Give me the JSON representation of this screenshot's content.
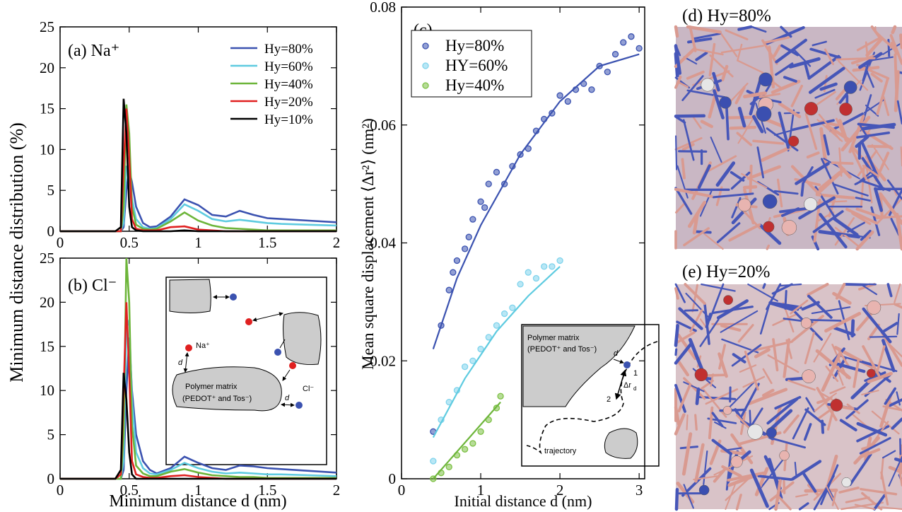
{
  "chart_data": [
    {
      "type": "line",
      "title": "(a) Na⁺",
      "ylabel": "Minimum distance distribution (%)",
      "x": [
        0,
        0.4,
        0.44,
        0.46,
        0.48,
        0.5,
        0.52,
        0.55,
        0.6,
        0.65,
        0.7,
        0.8,
        0.9,
        1.0,
        1.1,
        1.2,
        1.3,
        1.4,
        1.5,
        1.6,
        1.8,
        2.0
      ],
      "series": [
        {
          "name": "Hy=80%",
          "color": "#3b52b0",
          "values": [
            0,
            0,
            0,
            0.5,
            5,
            7.5,
            6,
            3,
            1,
            0.5,
            0.6,
            1.8,
            3.9,
            3.2,
            2,
            1.8,
            2.5,
            2,
            1.6,
            1.5,
            1.3,
            1.1
          ]
        },
        {
          "name": "Hy=60%",
          "color": "#5ecbe0",
          "values": [
            0,
            0,
            0,
            1,
            8,
            7,
            4,
            1.5,
            0.5,
            0.3,
            0.4,
            1.5,
            3.3,
            2.5,
            1.5,
            1.2,
            1.4,
            1.2,
            1,
            0.9,
            0.8,
            0.7
          ]
        },
        {
          "name": "Hy=40%",
          "color": "#6db53a",
          "values": [
            0,
            0,
            0,
            3,
            15.5,
            12,
            3,
            0.8,
            0.3,
            0.2,
            0.3,
            1.2,
            2.3,
            1.3,
            0.7,
            0.4,
            0.3,
            0.2,
            0.1,
            0.1,
            0.1,
            0.1
          ]
        },
        {
          "name": "Hy=20%",
          "color": "#e02020",
          "values": [
            0,
            0,
            0,
            8,
            15,
            9,
            1.5,
            0.3,
            0.1,
            0.1,
            0.1,
            0.5,
            0.6,
            0.2,
            0.1,
            0,
            0,
            0,
            0,
            0,
            0,
            0
          ]
        },
        {
          "name": "Hy=10%",
          "color": "#000000",
          "values": [
            0,
            0,
            0.5,
            16.2,
            12,
            3,
            0.5,
            0.1,
            0,
            0,
            0,
            0,
            0.1,
            0,
            0,
            0,
            0,
            0,
            0,
            0,
            0,
            0
          ]
        }
      ],
      "xlim": [
        0,
        2
      ],
      "ylim": [
        0,
        25
      ],
      "xticks": [
        0,
        0.5,
        1,
        1.5,
        2
      ],
      "yticks": [
        0,
        5,
        10,
        15,
        20,
        25
      ],
      "legend": "upper right"
    },
    {
      "type": "line",
      "title": "(b) Cl⁻",
      "xlabel": "Minimum distance d (nm)",
      "x": [
        0,
        0.4,
        0.44,
        0.46,
        0.48,
        0.5,
        0.52,
        0.55,
        0.6,
        0.65,
        0.7,
        0.8,
        0.9,
        1.0,
        1.1,
        1.2,
        1.3,
        1.4,
        1.5,
        1.6,
        1.8,
        2.0
      ],
      "series": [
        {
          "color": "#3b52b0",
          "values": [
            0,
            0,
            0,
            1,
            10,
            16,
            10,
            5,
            2,
            1,
            0.6,
            1.2,
            2.5,
            1.8,
            1.2,
            1,
            1.5,
            1.4,
            1.2,
            1.1,
            0.9,
            0.7
          ]
        },
        {
          "color": "#5ecbe0",
          "values": [
            0,
            0,
            0,
            2,
            17,
            18,
            9,
            3,
            1.2,
            0.6,
            0.5,
            1.0,
            1.8,
            1.2,
            0.8,
            0.6,
            0.7,
            0.6,
            0.5,
            0.5,
            0.4,
            0.3
          ]
        },
        {
          "color": "#6db53a",
          "values": [
            0,
            0,
            0,
            5,
            25,
            20,
            6,
            1.5,
            0.6,
            0.3,
            0.3,
            0.8,
            1.1,
            0.7,
            0.4,
            0.3,
            0.2,
            0.2,
            0.1,
            0.1,
            0.1,
            0.1
          ]
        },
        {
          "color": "#e02020",
          "values": [
            0,
            0,
            0.5,
            10,
            20,
            12,
            2,
            0.5,
            0.2,
            0.1,
            0.1,
            0.3,
            0.4,
            0.2,
            0.1,
            0,
            0,
            0,
            0,
            0,
            0,
            0
          ]
        },
        {
          "color": "#000000",
          "values": [
            0,
            0,
            1,
            12,
            9,
            3,
            0.5,
            0,
            0,
            0,
            0,
            0,
            0,
            0,
            0,
            0,
            0,
            0,
            0,
            0,
            0,
            0
          ]
        }
      ],
      "xlim": [
        0,
        2
      ],
      "ylim": [
        0,
        25
      ],
      "xticks": [
        0,
        0.5,
        1,
        1.5,
        2
      ],
      "yticks": [
        0,
        5,
        10,
        15,
        20,
        25
      ],
      "annotations": [
        "Na⁺",
        "d",
        "Polymer matrix",
        "(PEDOT⁺ and Tos⁻)",
        "d",
        "Cl⁻"
      ]
    },
    {
      "type": "scatter",
      "title": "(c)",
      "xlabel": "Initial distance d (nm)",
      "ylabel": "Mean square displacement ⟨Δr²⟩ (nm²)",
      "series": [
        {
          "name": "Hy=80%",
          "color": "#3b52b0",
          "x": [
            0.4,
            0.5,
            0.6,
            0.65,
            0.7,
            0.8,
            0.85,
            0.9,
            1.0,
            1.05,
            1.1,
            1.2,
            1.3,
            1.4,
            1.5,
            1.6,
            1.7,
            1.8,
            1.9,
            2.0,
            2.1,
            2.2,
            2.3,
            2.4,
            2.5,
            2.6,
            2.7,
            2.8,
            2.9,
            3.0
          ],
          "values": [
            0.008,
            0.026,
            0.032,
            0.035,
            0.037,
            0.039,
            0.041,
            0.044,
            0.047,
            0.046,
            0.05,
            0.052,
            0.05,
            0.053,
            0.055,
            0.056,
            0.059,
            0.061,
            0.062,
            0.065,
            0.064,
            0.066,
            0.067,
            0.066,
            0.07,
            0.069,
            0.072,
            0.074,
            0.075,
            0.073
          ]
        },
        {
          "name": "HY=60%",
          "color": "#7fd3ec",
          "x": [
            0.4,
            0.5,
            0.6,
            0.7,
            0.8,
            0.9,
            1.0,
            1.1,
            1.2,
            1.3,
            1.4,
            1.5,
            1.6,
            1.7,
            1.8,
            1.9,
            2.0
          ],
          "values": [
            0.003,
            0.01,
            0.013,
            0.015,
            0.019,
            0.02,
            0.022,
            0.024,
            0.026,
            0.028,
            0.029,
            0.033,
            0.035,
            0.034,
            0.036,
            0.036,
            0.037
          ]
        },
        {
          "name": "Hy=40%",
          "color": "#7cc043",
          "x": [
            0.4,
            0.5,
            0.6,
            0.7,
            0.8,
            0.9,
            1.0,
            1.1,
            1.2,
            1.25
          ],
          "values": [
            0,
            0.001,
            0.002,
            0.004,
            0.005,
            0.006,
            0.008,
            0.01,
            0.012,
            0.014
          ]
        }
      ],
      "fits": [
        {
          "color": "#3b52b0",
          "x": [
            0.4,
            0.7,
            1,
            1.5,
            2,
            2.5,
            3
          ],
          "values": [
            0.022,
            0.034,
            0.043,
            0.055,
            0.064,
            0.07,
            0.072
          ]
        },
        {
          "color": "#5ecbe0",
          "x": [
            0.4,
            0.8,
            1.2,
            1.6,
            2.0
          ],
          "values": [
            0.007,
            0.017,
            0.025,
            0.031,
            0.036
          ]
        },
        {
          "color": "#6db53a",
          "x": [
            0.4,
            1.25
          ],
          "values": [
            0.0,
            0.013
          ]
        }
      ],
      "xlim": [
        0,
        3.07
      ],
      "ylim": [
        0,
        0.08
      ],
      "xticks": [
        0,
        1,
        2,
        3
      ],
      "yticks": [
        0,
        0.02,
        0.04,
        0.06,
        0.08
      ],
      "legend": "upper left",
      "annotations": [
        "Polymer matrix",
        "(PEDOT⁺ and Tos⁻)",
        "d",
        "1",
        "Δr",
        "d",
        "2",
        "trajectory"
      ]
    }
  ],
  "images": [
    {
      "label": "(d) Hy=80%"
    },
    {
      "label": "(e) Hy=20%"
    }
  ]
}
